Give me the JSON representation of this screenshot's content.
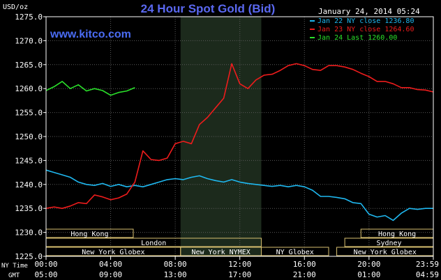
{
  "chart_data": {
    "type": "line",
    "title": "24 Hour Spot Gold (Bid)",
    "ylabel": "USD/oz",
    "watermark": "www.kitco.com",
    "datetime": "January 24, 2014 05:24",
    "ylim": [
      1225.0,
      1275.0
    ],
    "yticks": [
      "1275.0",
      "1270.0",
      "1265.0",
      "1260.0",
      "1255.0",
      "1250.0",
      "1245.0",
      "1240.0",
      "1235.0",
      "1230.0",
      "1225.0"
    ],
    "x_hours": [
      0,
      23.983
    ],
    "xlabel_ny": "NY Time",
    "xlabel_gmt": "GMT",
    "xticks_ny": [
      "00:00",
      "04:00",
      "08:00",
      "12:00",
      "16:00",
      "20:00",
      "23:59"
    ],
    "xticks_gmt": [
      "05:00",
      "09:00",
      "13:00",
      "17:00",
      "21:00",
      "01:00",
      "04:59"
    ],
    "shaded_region_hours": [
      8.33,
      13.33
    ],
    "grid": true,
    "legend_position": "top-right",
    "series": [
      {
        "name": "Jan 22 NY close 1236.80",
        "color": "#1fb8f0",
        "points": [
          [
            0,
            1243
          ],
          [
            0.5,
            1242.5
          ],
          [
            1,
            1242
          ],
          [
            1.5,
            1241.5
          ],
          [
            2,
            1240.5
          ],
          [
            2.5,
            1240
          ],
          [
            3,
            1239.8
          ],
          [
            3.5,
            1240.2
          ],
          [
            4,
            1239.6
          ],
          [
            4.5,
            1240
          ],
          [
            5,
            1239.5
          ],
          [
            5.5,
            1239.8
          ],
          [
            6,
            1239.5
          ],
          [
            6.5,
            1240
          ],
          [
            7,
            1240.5
          ],
          [
            7.5,
            1241
          ],
          [
            8,
            1241.2
          ],
          [
            8.5,
            1241
          ],
          [
            9,
            1241.5
          ],
          [
            9.5,
            1241.8
          ],
          [
            10,
            1241.2
          ],
          [
            10.5,
            1240.8
          ],
          [
            11,
            1240.5
          ],
          [
            11.5,
            1241
          ],
          [
            12,
            1240.5
          ],
          [
            12.5,
            1240.2
          ],
          [
            13,
            1240
          ],
          [
            13.5,
            1239.8
          ],
          [
            14,
            1239.6
          ],
          [
            14.5,
            1239.8
          ],
          [
            15,
            1239.5
          ],
          [
            15.5,
            1239.8
          ],
          [
            16,
            1239.5
          ],
          [
            16.5,
            1238.8
          ],
          [
            17,
            1237.5
          ],
          [
            17.5,
            1237.5
          ],
          [
            18,
            1237.3
          ],
          [
            18.5,
            1237
          ],
          [
            19,
            1236.2
          ],
          [
            19.5,
            1236
          ],
          [
            20,
            1233.8
          ],
          [
            20.5,
            1233.2
          ],
          [
            21,
            1233.5
          ],
          [
            21.5,
            1232.5
          ],
          [
            22,
            1234
          ],
          [
            22.5,
            1235
          ],
          [
            23,
            1234.8
          ],
          [
            23.5,
            1235
          ],
          [
            23.98,
            1235
          ]
        ]
      },
      {
        "name": "Jan 23 NY close 1264.60",
        "color": "#ee1c1c",
        "points": [
          [
            0,
            1235
          ],
          [
            0.5,
            1235.3
          ],
          [
            1,
            1235
          ],
          [
            1.5,
            1235.5
          ],
          [
            2,
            1236.2
          ],
          [
            2.5,
            1236
          ],
          [
            3,
            1237.8
          ],
          [
            3.5,
            1237.4
          ],
          [
            4,
            1236.8
          ],
          [
            4.5,
            1237.2
          ],
          [
            5,
            1238
          ],
          [
            5.5,
            1240.5
          ],
          [
            6,
            1247
          ],
          [
            6.5,
            1245.2
          ],
          [
            7,
            1245
          ],
          [
            7.5,
            1245.5
          ],
          [
            8,
            1248.5
          ],
          [
            8.5,
            1249
          ],
          [
            9,
            1248.5
          ],
          [
            9.5,
            1252.5
          ],
          [
            10,
            1254
          ],
          [
            10.5,
            1256
          ],
          [
            11,
            1258
          ],
          [
            11.5,
            1265.2
          ],
          [
            12,
            1261
          ],
          [
            12.5,
            1260
          ],
          [
            13,
            1261.8
          ],
          [
            13.5,
            1262.8
          ],
          [
            14,
            1263
          ],
          [
            14.5,
            1263.8
          ],
          [
            15,
            1264.8
          ],
          [
            15.5,
            1265.2
          ],
          [
            16,
            1264.8
          ],
          [
            16.5,
            1264
          ],
          [
            17,
            1263.8
          ],
          [
            17.5,
            1264.8
          ],
          [
            18,
            1264.8
          ],
          [
            18.5,
            1264.5
          ],
          [
            19,
            1264
          ],
          [
            19.5,
            1263.2
          ],
          [
            20,
            1262.5
          ],
          [
            20.5,
            1261.5
          ],
          [
            21,
            1261.5
          ],
          [
            21.5,
            1261
          ],
          [
            22,
            1260.2
          ],
          [
            22.5,
            1260.2
          ],
          [
            23,
            1259.8
          ],
          [
            23.5,
            1259.7
          ],
          [
            23.98,
            1259.3
          ]
        ]
      },
      {
        "name": "Jan 24 Last 1260.00",
        "color": "#2ae02a",
        "points": [
          [
            0,
            1259.6
          ],
          [
            0.5,
            1260.4
          ],
          [
            1,
            1261.5
          ],
          [
            1.5,
            1260
          ],
          [
            2,
            1260.8
          ],
          [
            2.5,
            1259.5
          ],
          [
            3,
            1260
          ],
          [
            3.5,
            1259.6
          ],
          [
            4,
            1258.6
          ],
          [
            4.5,
            1259.2
          ],
          [
            5,
            1259.5
          ],
          [
            5.5,
            1260.2
          ]
        ]
      }
    ],
    "sessions": [
      {
        "label": "Hong Kong",
        "start": 0,
        "end": 5.4,
        "row": 0
      },
      {
        "label": "Hong Kong",
        "start": 19.5,
        "end": 23.98,
        "row": 0
      },
      {
        "label": "London",
        "start": 0,
        "end": 13.33,
        "row": 1
      },
      {
        "label": "Sydney",
        "start": 18.5,
        "end": 23.98,
        "row": 1
      },
      {
        "label": "New York Globex",
        "start": 0,
        "end": 8.33,
        "row": 2
      },
      {
        "label": "New York NYMEX",
        "start": 8.33,
        "end": 13.33,
        "row": 2
      },
      {
        "label": "NY Globex",
        "start": 13.33,
        "end": 17.5,
        "row": 2
      },
      {
        "label": "New York Globex",
        "start": 18,
        "end": 23.98,
        "row": 2
      }
    ]
  }
}
